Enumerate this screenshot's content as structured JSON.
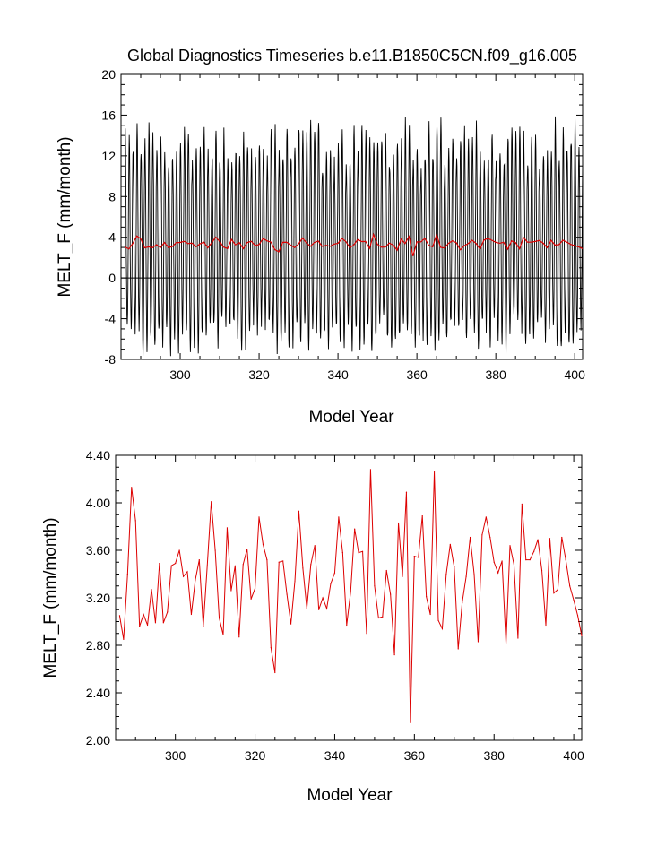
{
  "chart_data": [
    {
      "type": "line",
      "title": "Global Diagnostics Timeseries b.e11.B1850C5CN.f09_g16.005",
      "xlabel": "Model Year",
      "ylabel": "MELT_F (mm/month)",
      "xlim": [
        285,
        402
      ],
      "ylim": [
        -8,
        20
      ],
      "xticks": [
        300,
        320,
        340,
        360,
        380,
        400
      ],
      "yticks": [
        -8,
        -4,
        0,
        4,
        8,
        12,
        16,
        20
      ],
      "ytick_labels": [
        "-8",
        "-4",
        "0",
        "4",
        "8",
        "12",
        "16",
        "20"
      ],
      "reference_line": 0,
      "series": [
        {
          "color": "#000000",
          "style": "monthly seasonal cycle",
          "x_start": 286,
          "x_end": 402,
          "amplitude_low": -5.5,
          "amplitude_high": 13.5
        },
        {
          "color": "#dd0000",
          "style": "annual mean",
          "same_as_lower_panel": true
        }
      ]
    },
    {
      "type": "line",
      "title": "",
      "xlabel": "Model Year",
      "ylabel": "MELT_F (mm/month)",
      "xlim": [
        285,
        402
      ],
      "ylim": [
        2.0,
        4.4
      ],
      "xticks": [
        300,
        320,
        340,
        360,
        380,
        400
      ],
      "yticks": [
        2.0,
        2.4,
        2.8,
        3.2,
        3.6,
        4.0,
        4.4
      ],
      "ytick_labels": [
        "2.00",
        "2.40",
        "2.80",
        "3.20",
        "3.60",
        "4.00",
        "4.40"
      ],
      "series": [
        {
          "color": "#dd0000",
          "x": [
            286,
            287,
            288,
            289,
            290,
            291,
            292,
            293,
            294,
            295,
            296,
            297,
            298,
            299,
            300,
            301,
            302,
            303,
            304,
            305,
            306,
            307,
            308,
            309,
            310,
            311,
            312,
            313,
            314,
            315,
            316,
            317,
            318,
            319,
            320,
            321,
            322,
            323,
            324,
            325,
            326,
            327,
            328,
            329,
            330,
            331,
            332,
            333,
            334,
            335,
            336,
            337,
            338,
            339,
            340,
            341,
            342,
            343,
            344,
            345,
            346,
            347,
            348,
            349,
            350,
            351,
            352,
            353,
            354,
            355,
            356,
            357,
            358,
            359,
            360,
            361,
            362,
            363,
            364,
            365,
            366,
            367,
            368,
            369,
            370,
            371,
            372,
            373,
            374,
            375,
            376,
            377,
            378,
            379,
            380,
            381,
            382,
            383,
            384,
            385,
            386,
            387,
            388,
            389,
            390,
            391,
            392,
            393,
            394,
            395,
            396,
            397,
            398,
            399,
            400,
            401,
            402
          ],
          "values": [
            3.05,
            2.85,
            3.4,
            4.13,
            3.85,
            2.96,
            3.06,
            2.97,
            3.27,
            2.99,
            3.49,
            2.99,
            3.08,
            3.47,
            3.49,
            3.6,
            3.38,
            3.42,
            3.06,
            3.35,
            3.52,
            2.96,
            3.47,
            4.01,
            3.6,
            3.03,
            2.89,
            3.79,
            3.26,
            3.47,
            2.87,
            3.48,
            3.61,
            3.19,
            3.28,
            3.88,
            3.65,
            3.52,
            2.78,
            2.57,
            3.5,
            3.51,
            3.23,
            2.98,
            3.34,
            3.93,
            3.45,
            3.11,
            3.48,
            3.64,
            3.1,
            3.2,
            3.11,
            3.32,
            3.41,
            3.88,
            3.58,
            2.97,
            3.25,
            3.78,
            3.58,
            3.59,
            2.9,
            4.28,
            3.3,
            3.03,
            3.04,
            3.43,
            3.23,
            2.72,
            3.83,
            3.38,
            4.09,
            2.15,
            3.55,
            3.54,
            3.89,
            3.21,
            3.06,
            4.26,
            3.01,
            2.94,
            3.4,
            3.65,
            3.46,
            2.77,
            3.16,
            3.38,
            3.71,
            3.4,
            2.83,
            3.73,
            3.88,
            3.71,
            3.5,
            3.41,
            3.51,
            2.81,
            3.64,
            3.48,
            2.86,
            3.99,
            3.52,
            3.52,
            3.59,
            3.69,
            3.43,
            2.97,
            3.7,
            3.24,
            3.27,
            3.71,
            3.52,
            3.3,
            3.18,
            3.05,
            2.88
          ]
        }
      ]
    }
  ]
}
